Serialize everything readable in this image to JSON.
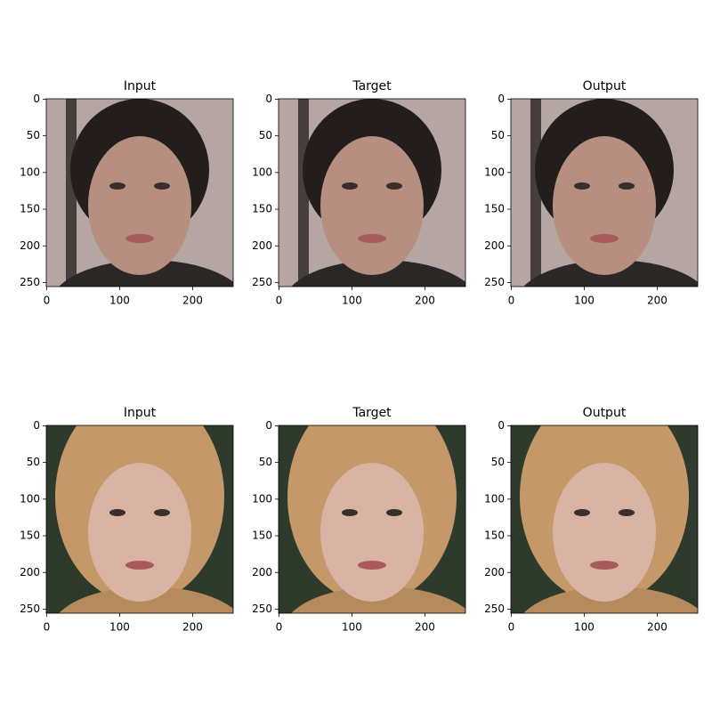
{
  "chart_data": [
    {
      "type": "image",
      "title": "Input",
      "xlim": [
        -0.5,
        255.5
      ],
      "ylim": [
        255.5,
        -0.5
      ],
      "xticks": [
        0,
        100,
        200
      ],
      "yticks": [
        0,
        50,
        100,
        150,
        200,
        250
      ]
    },
    {
      "type": "image",
      "title": "Target",
      "xlim": [
        -0.5,
        255.5
      ],
      "ylim": [
        255.5,
        -0.5
      ],
      "xticks": [
        0,
        100,
        200
      ],
      "yticks": [
        0,
        50,
        100,
        150,
        200,
        250
      ]
    },
    {
      "type": "image",
      "title": "Output",
      "xlim": [
        -0.5,
        255.5
      ],
      "ylim": [
        255.5,
        -0.5
      ],
      "xticks": [
        0,
        100,
        200
      ],
      "yticks": [
        0,
        50,
        100,
        150,
        200,
        250
      ]
    },
    {
      "type": "image",
      "title": "Input",
      "xlim": [
        -0.5,
        255.5
      ],
      "ylim": [
        255.5,
        -0.5
      ],
      "xticks": [
        0,
        100,
        200
      ],
      "yticks": [
        0,
        50,
        100,
        150,
        200,
        250
      ]
    },
    {
      "type": "image",
      "title": "Target",
      "xlim": [
        -0.5,
        255.5
      ],
      "ylim": [
        255.5,
        -0.5
      ],
      "xticks": [
        0,
        100,
        200
      ],
      "yticks": [
        0,
        50,
        100,
        150,
        200,
        250
      ]
    },
    {
      "type": "image",
      "title": "Output",
      "xlim": [
        -0.5,
        255.5
      ],
      "ylim": [
        255.5,
        -0.5
      ],
      "xticks": [
        0,
        100,
        200
      ],
      "yticks": [
        0,
        50,
        100,
        150,
        200,
        250
      ]
    }
  ]
}
